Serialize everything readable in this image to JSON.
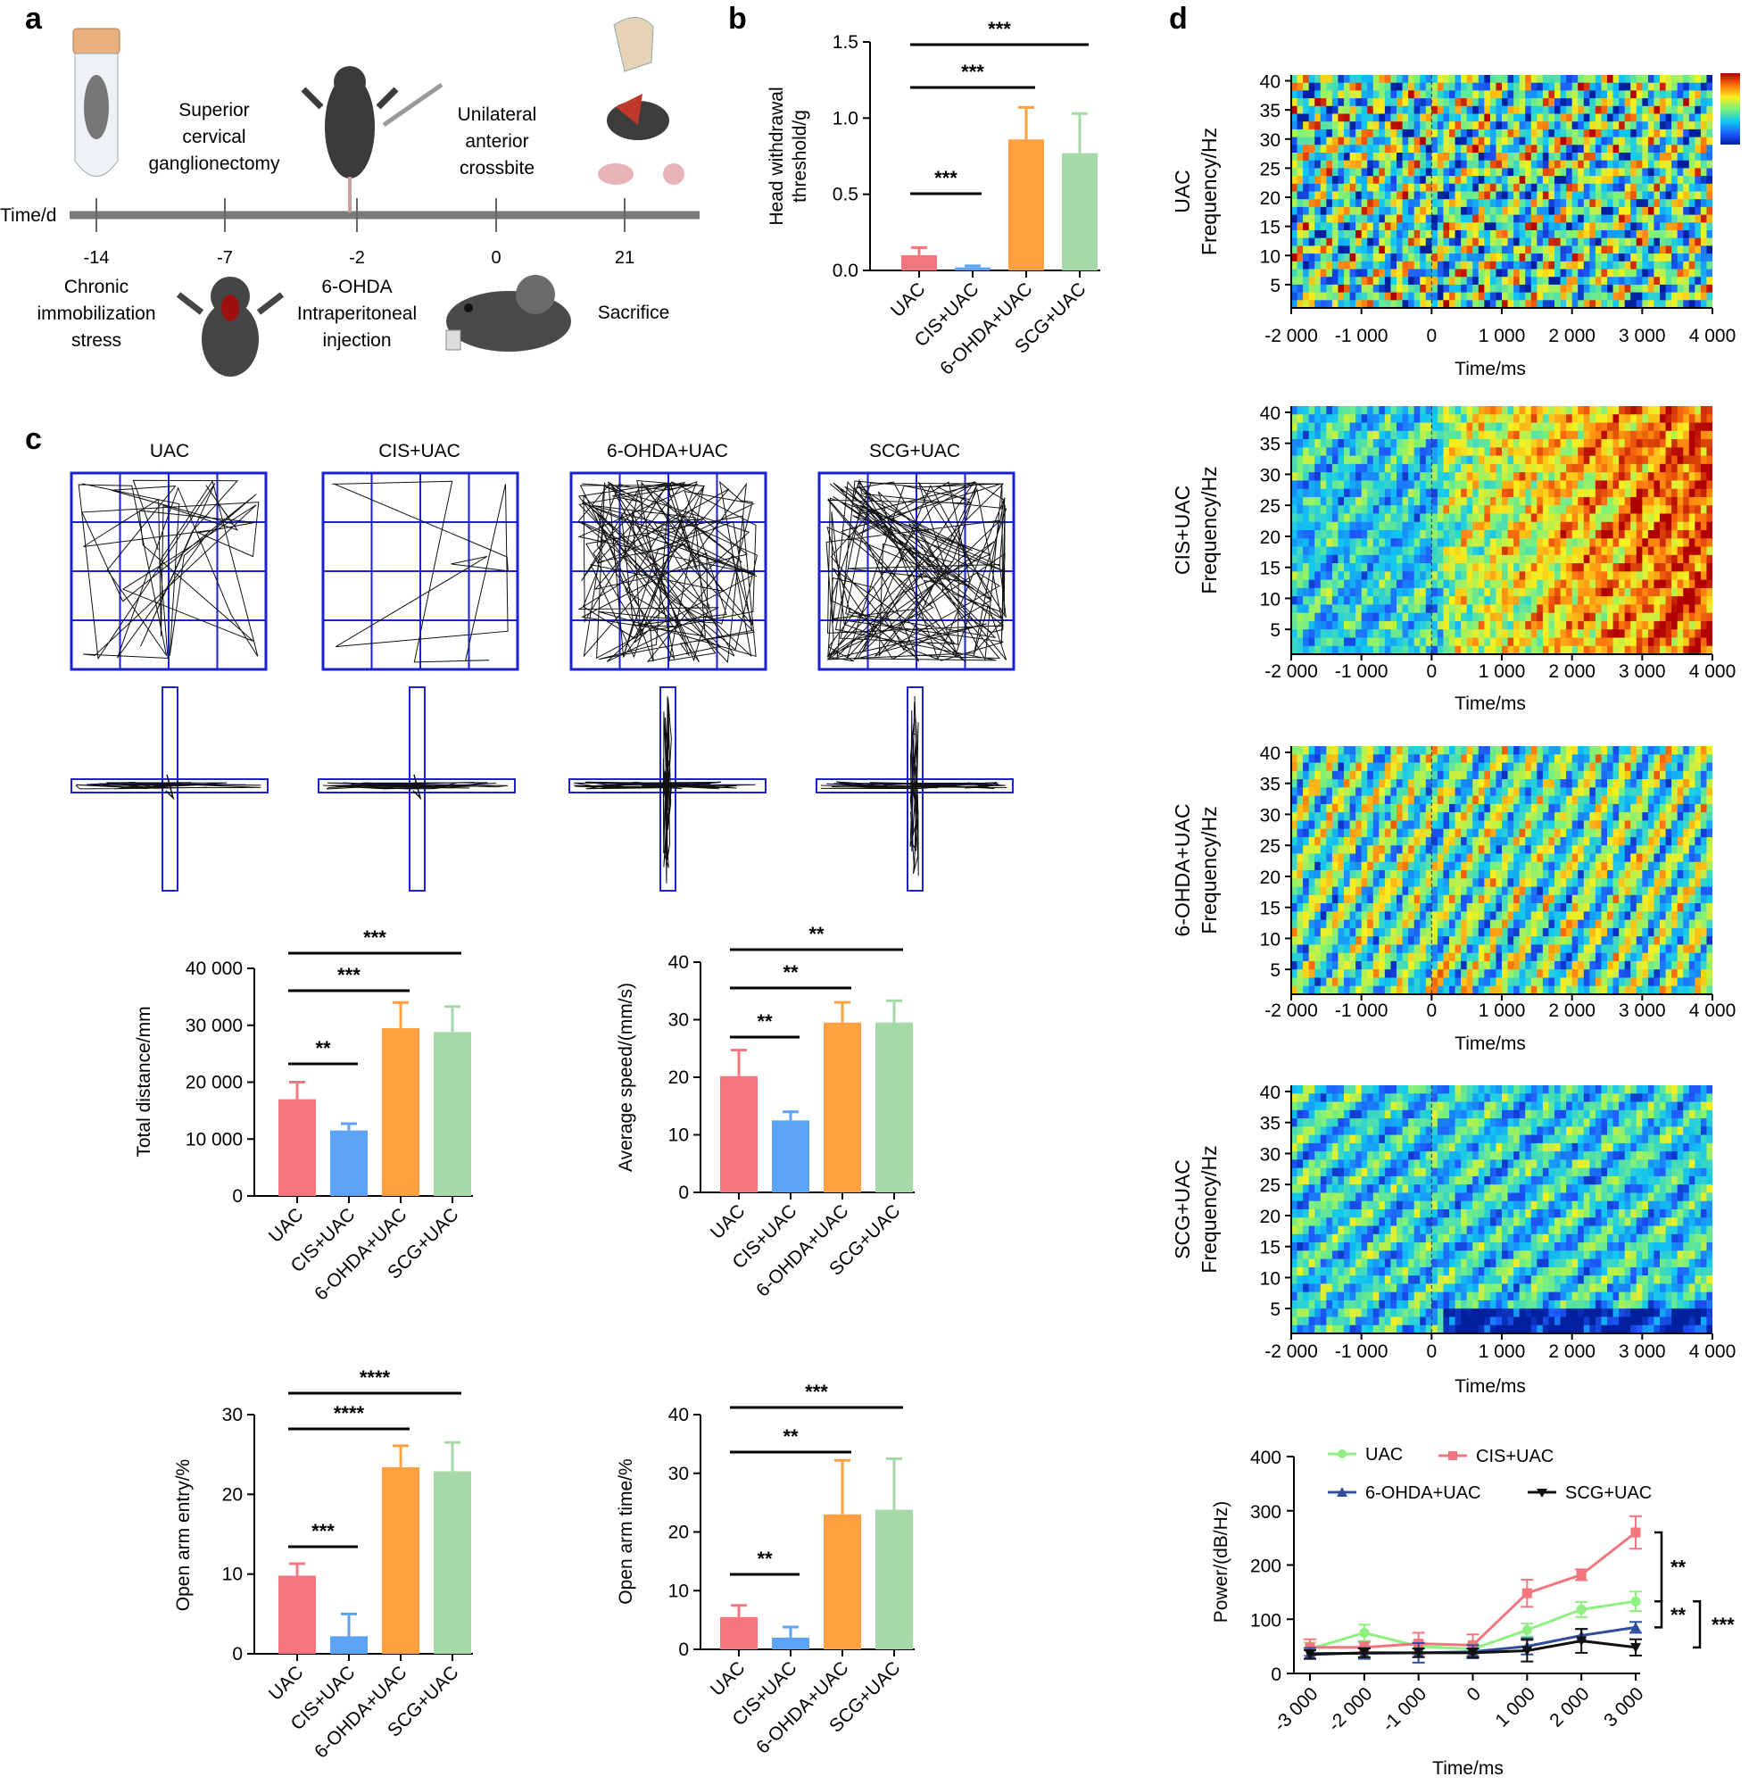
{
  "panels": {
    "a": "a",
    "b": "b",
    "c": "c",
    "d": "d"
  },
  "timeline": {
    "axis_label": "Time/d",
    "days": [
      "-14",
      "-7",
      "-2",
      "0",
      "21"
    ],
    "events": {
      "cis": [
        "Chronic",
        "immobilization",
        "stress"
      ],
      "scg": [
        "Superior",
        "cervical",
        "ganglionectomy"
      ],
      "ohda": [
        "6-OHDA",
        "Intraperitoneal",
        "injection"
      ],
      "uac": [
        "Unilateral",
        "anterior",
        "crossbite"
      ],
      "sac": [
        "Sacrifice"
      ]
    }
  },
  "maze_titles": [
    "UAC",
    "CIS+UAC",
    "6-OHDA+UAC",
    "SCG+UAC"
  ],
  "colors": {
    "uac": "#F4757E",
    "cis": "#5BA3F5",
    "ohda": "#FFA040",
    "scg": "#A6D9A8",
    "maze": "#1B22D6",
    "line_uac": "#8EF07E",
    "line_cis": "#F4757E",
    "line_ohda": "#2F4F9E",
    "line_scg": "#111111"
  },
  "chart_data": [
    {
      "id": "head",
      "type": "bar",
      "categories": [
        "UAC",
        "CIS+UAC",
        "6-OHDA+UAC",
        "SCG+UAC"
      ],
      "values": [
        0.1,
        0.02,
        0.86,
        0.77
      ],
      "errors": [
        0.05,
        0.01,
        0.21,
        0.26
      ],
      "ylabel": [
        "Head withdrawal",
        "threshold/g"
      ],
      "ylim": [
        0,
        1.5
      ],
      "yticks": [
        "0.0",
        "0.5",
        "1.0",
        "1.5"
      ],
      "sig": [
        "***",
        "***",
        "***"
      ]
    },
    {
      "id": "dist",
      "type": "bar",
      "categories": [
        "UAC",
        "CIS+UAC",
        "6-OHDA+UAC",
        "SCG+UAC"
      ],
      "values": [
        17000,
        11500,
        29500,
        28800
      ],
      "errors": [
        3000,
        1200,
        4500,
        4500
      ],
      "ylabel": [
        "Total distance/mm"
      ],
      "ylim": [
        0,
        40000
      ],
      "yticks": [
        "0",
        "10 000",
        "20 000",
        "30 000",
        "40 000"
      ],
      "sig": [
        "**",
        "***",
        "***"
      ]
    },
    {
      "id": "speed",
      "type": "bar",
      "categories": [
        "UAC",
        "CIS+UAC",
        "6-OHDA+UAC",
        "SCG+UAC"
      ],
      "values": [
        20.2,
        12.5,
        29.5,
        29.5
      ],
      "errors": [
        4.5,
        1.5,
        3.5,
        3.8
      ],
      "ylabel": [
        "Average speed/(mm/s)"
      ],
      "ylim": [
        0,
        40
      ],
      "yticks": [
        "0",
        "10",
        "20",
        "30",
        "40"
      ],
      "sig": [
        "**",
        "**",
        "**"
      ]
    },
    {
      "id": "entry",
      "type": "bar",
      "categories": [
        "UAC",
        "CIS+UAC",
        "6-OHDA+UAC",
        "SCG+UAC"
      ],
      "values": [
        9.8,
        2.2,
        23.4,
        22.9
      ],
      "errors": [
        1.5,
        2.8,
        2.7,
        3.6
      ],
      "ylabel": [
        "Open arm entry/%"
      ],
      "ylim": [
        0,
        30
      ],
      "yticks": [
        "0",
        "10",
        "20",
        "30"
      ],
      "sig": [
        "***",
        "****",
        "****"
      ]
    },
    {
      "id": "atime",
      "type": "bar",
      "categories": [
        "UAC",
        "CIS+UAC",
        "6-OHDA+UAC",
        "SCG+UAC"
      ],
      "values": [
        5.5,
        2.0,
        23.0,
        23.8
      ],
      "errors": [
        2.0,
        1.8,
        9.2,
        8.7
      ],
      "ylabel": [
        "Open arm time/%"
      ],
      "ylim": [
        0,
        40
      ],
      "yticks": [
        "0",
        "10",
        "20",
        "30",
        "40"
      ],
      "sig": [
        "**",
        "**",
        "***"
      ]
    },
    {
      "id": "spec",
      "type": "heatmap",
      "groups": [
        "UAC",
        "CIS+UAC",
        "6-OHDA+UAC",
        "SCG+UAC"
      ],
      "ylabel": "Frequency/Hz",
      "xlabel": "Time/ms",
      "yticks": [
        "5",
        "10",
        "15",
        "20",
        "25",
        "30",
        "35",
        "40"
      ],
      "xticks": [
        "-2 000",
        "-1 000",
        "0",
        "1 000",
        "2 000",
        "3 000",
        "4 000"
      ],
      "xlim": [
        -2000,
        4000
      ],
      "ylim": [
        1,
        41
      ]
    },
    {
      "id": "power",
      "type": "line",
      "x": [
        -3000,
        -2000,
        -1000,
        0,
        1000,
        2000,
        3000
      ],
      "xticks": [
        "-3 000",
        "-2 000",
        "-1 000",
        "0",
        "1 000",
        "2 000",
        "3 000"
      ],
      "xlabel": "Time/ms",
      "ylabel": "Power/(dB/Hz)",
      "ylim": [
        0,
        400
      ],
      "yticks": [
        "0",
        "100",
        "200",
        "300",
        "400"
      ],
      "series": [
        {
          "name": "UAC",
          "values": [
            45,
            75,
            50,
            45,
            80,
            118,
            133
          ],
          "errors": [
            12,
            15,
            10,
            10,
            12,
            14,
            18
          ]
        },
        {
          "name": "CIS+UAC",
          "values": [
            48,
            48,
            55,
            52,
            148,
            182,
            260
          ],
          "errors": [
            15,
            10,
            20,
            20,
            25,
            10,
            30
          ]
        },
        {
          "name": "6-OHDA+UAC",
          "values": [
            37,
            37,
            38,
            40,
            50,
            70,
            85
          ],
          "errors": [
            10,
            10,
            18,
            12,
            15,
            12,
            10
          ]
        },
        {
          "name": "SCG+UAC",
          "values": [
            35,
            38,
            38,
            38,
            42,
            60,
            48
          ],
          "errors": [
            8,
            8,
            8,
            8,
            20,
            22,
            15
          ]
        }
      ],
      "sig": [
        "**",
        "**",
        "***"
      ]
    }
  ]
}
